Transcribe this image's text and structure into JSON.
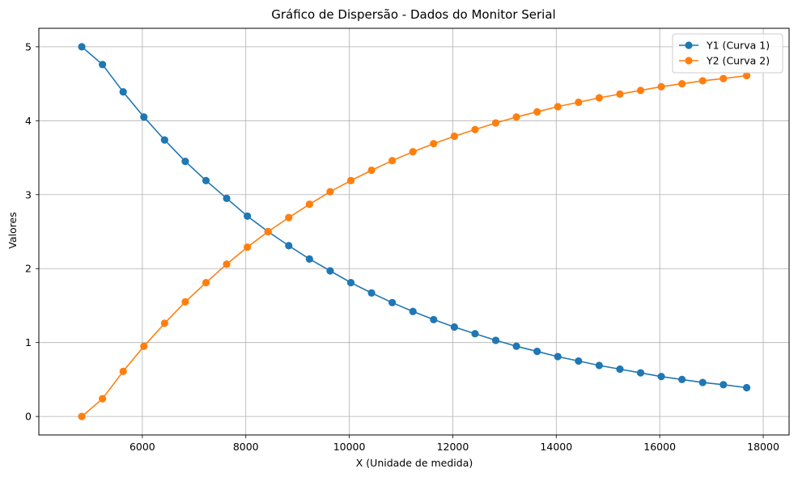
{
  "chart_data": {
    "type": "line",
    "title": "Gráfico de Dispersão - Dados do Monitor Serial",
    "xlabel": "X (Unidade de medida)",
    "ylabel": "Valores",
    "xlim": [
      4000,
      18500
    ],
    "ylim": [
      -0.25,
      5.25
    ],
    "xticks": [
      6000,
      8000,
      10000,
      12000,
      14000,
      16000,
      18000
    ],
    "xtick_labels": [
      "6000",
      "8000",
      "10000",
      "12000",
      "14000",
      "16000",
      "18000"
    ],
    "yticks": [
      0,
      1,
      2,
      3,
      4,
      5
    ],
    "ytick_labels": [
      "0",
      "1",
      "2",
      "3",
      "4",
      "5"
    ],
    "grid": true,
    "legend_position": "top-right",
    "x": [
      4830,
      5230,
      5630,
      6030,
      6430,
      6830,
      7230,
      7630,
      8030,
      8430,
      8830,
      9230,
      9630,
      10030,
      10430,
      10830,
      11230,
      11630,
      12030,
      12430,
      12830,
      13230,
      13630,
      14030,
      14430,
      14830,
      15230,
      15630,
      16030,
      16430,
      16830,
      17230,
      17680
    ],
    "series": [
      {
        "name": "Y1 (Curva 1)",
        "color": "#1f77b4",
        "values": [
          5.0,
          4.76,
          4.39,
          4.05,
          3.74,
          3.45,
          3.19,
          2.95,
          2.71,
          2.5,
          2.31,
          2.13,
          1.97,
          1.81,
          1.67,
          1.54,
          1.42,
          1.31,
          1.21,
          1.12,
          1.03,
          0.95,
          0.88,
          0.81,
          0.75,
          0.69,
          0.64,
          0.59,
          0.54,
          0.5,
          0.46,
          0.43,
          0.39
        ]
      },
      {
        "name": "Y2 (Curva 2)",
        "color": "#ff7f0e",
        "values": [
          0.0,
          0.24,
          0.61,
          0.95,
          1.26,
          1.55,
          1.81,
          2.06,
          2.29,
          2.5,
          2.69,
          2.87,
          3.04,
          3.19,
          3.33,
          3.46,
          3.58,
          3.69,
          3.79,
          3.88,
          3.97,
          4.05,
          4.12,
          4.19,
          4.25,
          4.31,
          4.36,
          4.41,
          4.46,
          4.5,
          4.54,
          4.57,
          4.61
        ]
      }
    ]
  }
}
